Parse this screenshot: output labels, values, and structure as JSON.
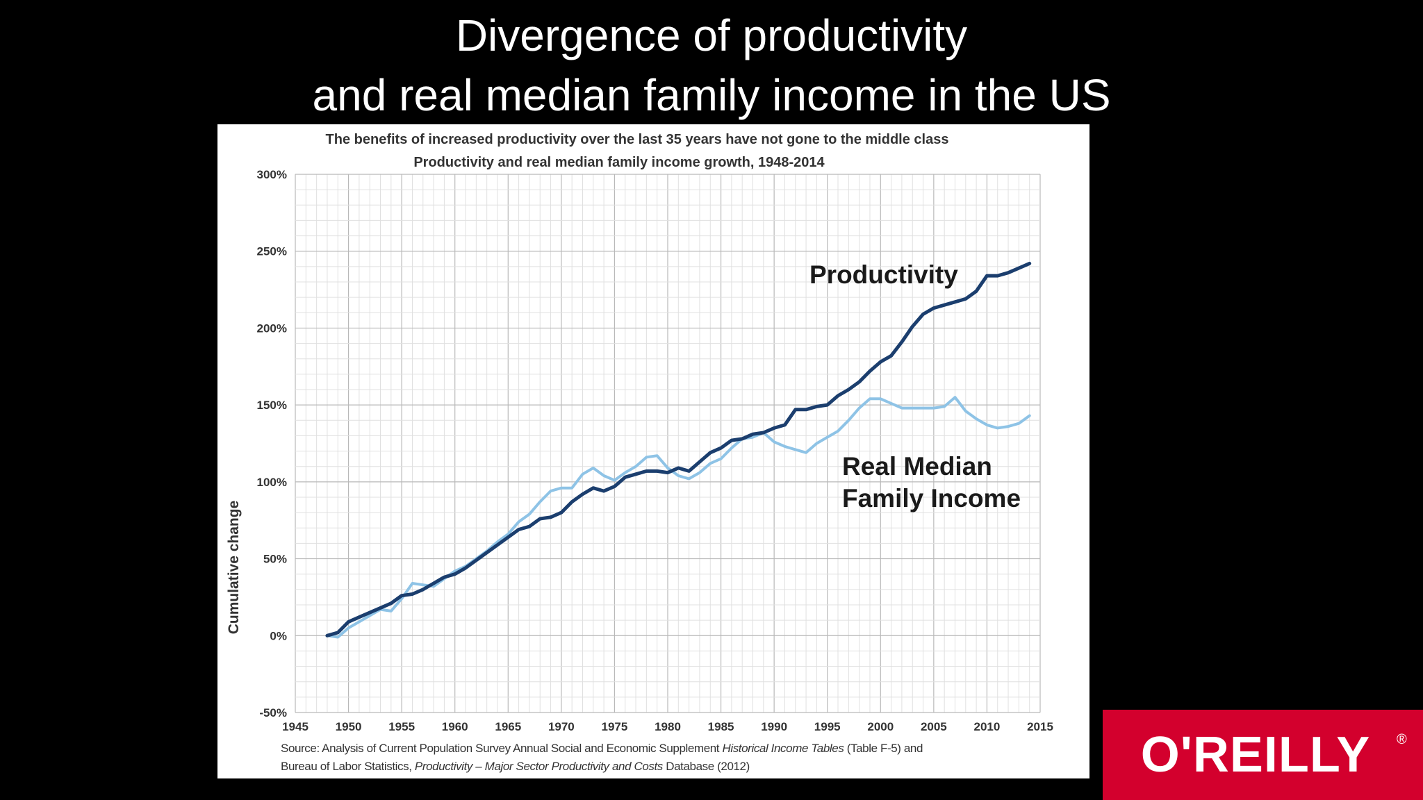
{
  "slide": {
    "title_line1": "Divergence of productivity",
    "title_line2": "and real median family income in the US"
  },
  "chart_data": {
    "type": "line",
    "title": "The benefits of increased productivity over the last 35 years have not gone to the middle class",
    "subtitle": "Productivity and real median family income growth, 1948-2014",
    "ylabel": "Cumulative change",
    "xlabel": "",
    "xlim": [
      1945,
      2015
    ],
    "ylim": [
      -50,
      300
    ],
    "x_ticks": [
      1945,
      1950,
      1955,
      1960,
      1965,
      1970,
      1975,
      1980,
      1985,
      1990,
      1995,
      2000,
      2005,
      2010,
      2015
    ],
    "x_tick_labels": [
      "1945",
      "1950",
      "1955",
      "1960",
      "1965",
      "1970",
      "1975",
      "1980",
      "1985",
      "1990",
      "1995",
      "2000",
      "2005",
      "2010",
      "2015"
    ],
    "y_ticks": [
      -50,
      0,
      50,
      100,
      150,
      200,
      250,
      300
    ],
    "y_tick_labels": [
      "-50%",
      "0%",
      "50%",
      "100%",
      "150%",
      "200%",
      "250%",
      "300%"
    ],
    "grid": true,
    "series": [
      {
        "name": "Productivity",
        "color": "#1b3e6e",
        "x": [
          1948,
          1949,
          1950,
          1951,
          1952,
          1953,
          1954,
          1955,
          1956,
          1957,
          1958,
          1959,
          1960,
          1961,
          1962,
          1963,
          1964,
          1965,
          1966,
          1967,
          1968,
          1969,
          1970,
          1971,
          1972,
          1973,
          1974,
          1975,
          1976,
          1977,
          1978,
          1979,
          1980,
          1981,
          1982,
          1983,
          1984,
          1985,
          1986,
          1987,
          1988,
          1989,
          1990,
          1991,
          1992,
          1993,
          1994,
          1995,
          1996,
          1997,
          1998,
          1999,
          2000,
          2001,
          2002,
          2003,
          2004,
          2005,
          2006,
          2007,
          2008,
          2009,
          2010,
          2011,
          2012,
          2013,
          2014
        ],
        "values": [
          0,
          2,
          9,
          12,
          15,
          18,
          21,
          26,
          27,
          30,
          34,
          38,
          40,
          44,
          49,
          54,
          59,
          64,
          69,
          71,
          76,
          77,
          80,
          87,
          92,
          96,
          94,
          97,
          103,
          105,
          107,
          107,
          106,
          109,
          107,
          113,
          119,
          122,
          127,
          128,
          131,
          132,
          135,
          137,
          147,
          147,
          149,
          150,
          156,
          160,
          165,
          172,
          178,
          182,
          191,
          201,
          209,
          213,
          215,
          217,
          219,
          224,
          234,
          234,
          236,
          239,
          242
        ]
      },
      {
        "name": "Real Median Family Income",
        "color": "#8ec3e6",
        "x": [
          1948,
          1949,
          1950,
          1951,
          1952,
          1953,
          1954,
          1955,
          1956,
          1957,
          1958,
          1959,
          1960,
          1961,
          1962,
          1963,
          1964,
          1965,
          1966,
          1967,
          1968,
          1969,
          1970,
          1971,
          1972,
          1973,
          1974,
          1975,
          1976,
          1977,
          1978,
          1979,
          1980,
          1981,
          1982,
          1983,
          1984,
          1985,
          1986,
          1987,
          1988,
          1989,
          1990,
          1991,
          1992,
          1993,
          1994,
          1995,
          1996,
          1997,
          1998,
          1999,
          2000,
          2001,
          2002,
          2003,
          2004,
          2005,
          2006,
          2007,
          2008,
          2009,
          2010,
          2011,
          2012,
          2013,
          2014
        ],
        "values": [
          0,
          -1,
          5,
          9,
          13,
          17,
          16,
          24,
          34,
          33,
          32,
          37,
          42,
          45,
          50,
          55,
          61,
          66,
          74,
          79,
          87,
          94,
          96,
          96,
          105,
          109,
          104,
          101,
          106,
          110,
          116,
          117,
          109,
          104,
          102,
          106,
          112,
          115,
          122,
          128,
          129,
          132,
          126,
          123,
          121,
          119,
          125,
          129,
          133,
          140,
          148,
          154,
          154,
          151,
          148,
          148,
          148,
          148,
          149,
          155,
          146,
          141,
          137,
          135,
          136,
          138,
          143
        ]
      }
    ],
    "annotations": [
      {
        "text": "Productivity",
        "series": "Productivity"
      },
      {
        "text_lines": [
          "Real Median",
          "Family Income"
        ],
        "series": "Real Median Family Income"
      }
    ],
    "source_line1_a": "Source: Analysis of Current Population Survey Annual Social and Economic Supplement ",
    "source_line1_b": "Historical Income Tables",
    "source_line1_c": " (Table F-5) and",
    "source_line2_a": "Bureau of Labor Statistics, ",
    "source_line2_b": "Productivity – Major Sector Productivity and Costs",
    "source_line2_c": " Database (2012)"
  },
  "logo": {
    "text": "O'REILLY",
    "mark": "®",
    "color": "#d3002d"
  }
}
